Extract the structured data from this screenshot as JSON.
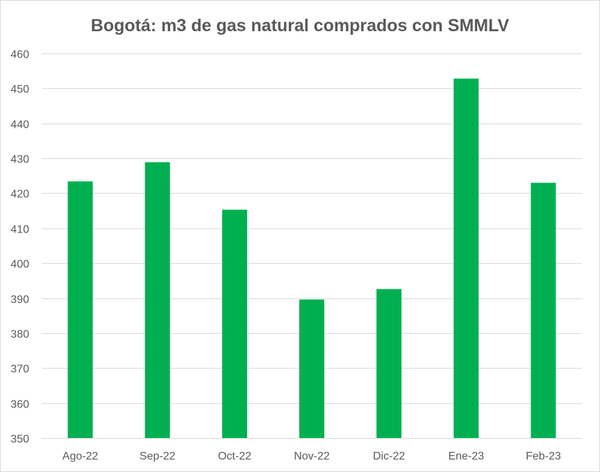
{
  "chart_data": {
    "type": "bar",
    "title": "Bogotá: m3 de gas natural comprados con SMMLV",
    "xlabel": "",
    "ylabel": "",
    "categories": [
      "Ago-22",
      "Sep-22",
      "Oct-22",
      "Nov-22",
      "Dic-22",
      "Ene-23",
      "Feb-23"
    ],
    "values": [
      423.4,
      428.9,
      415.3,
      389.6,
      392.6,
      452.8,
      423.0
    ],
    "ylim": [
      350,
      460
    ],
    "yticks": [
      350,
      360,
      370,
      380,
      390,
      400,
      410,
      420,
      430,
      440,
      450,
      460
    ],
    "grid": true,
    "legend": "none",
    "bar_color": "#00B050",
    "grid_color": "#D9D9D9"
  }
}
